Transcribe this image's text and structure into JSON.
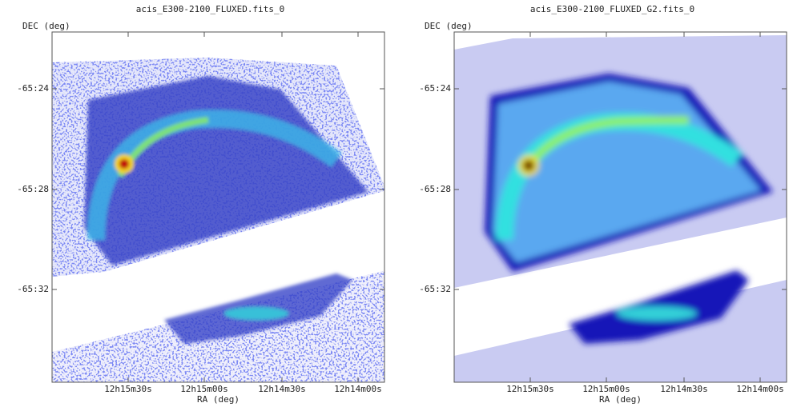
{
  "panels": [
    {
      "title": "acis_E300-2100_FLUXED.fits_0",
      "y_label": "DEC (deg)",
      "x_label": "RA (deg)",
      "y_ticks": [
        "-65:24",
        "-65:28",
        "-65:32"
      ],
      "x_ticks": [
        "12h15m30s",
        "12h15m00s",
        "12h14m30s",
        "12h14m00s"
      ]
    },
    {
      "title": "acis_E300-2100_FLUXED_G2.fits_0",
      "y_label": "DEC (deg)",
      "x_label": "RA (deg)",
      "y_ticks": [
        "-65:24",
        "-65:28",
        "-65:32"
      ],
      "x_ticks": [
        "12h15m30s",
        "12h15m00s",
        "12h14m30s",
        "12h14m00s"
      ]
    }
  ]
}
